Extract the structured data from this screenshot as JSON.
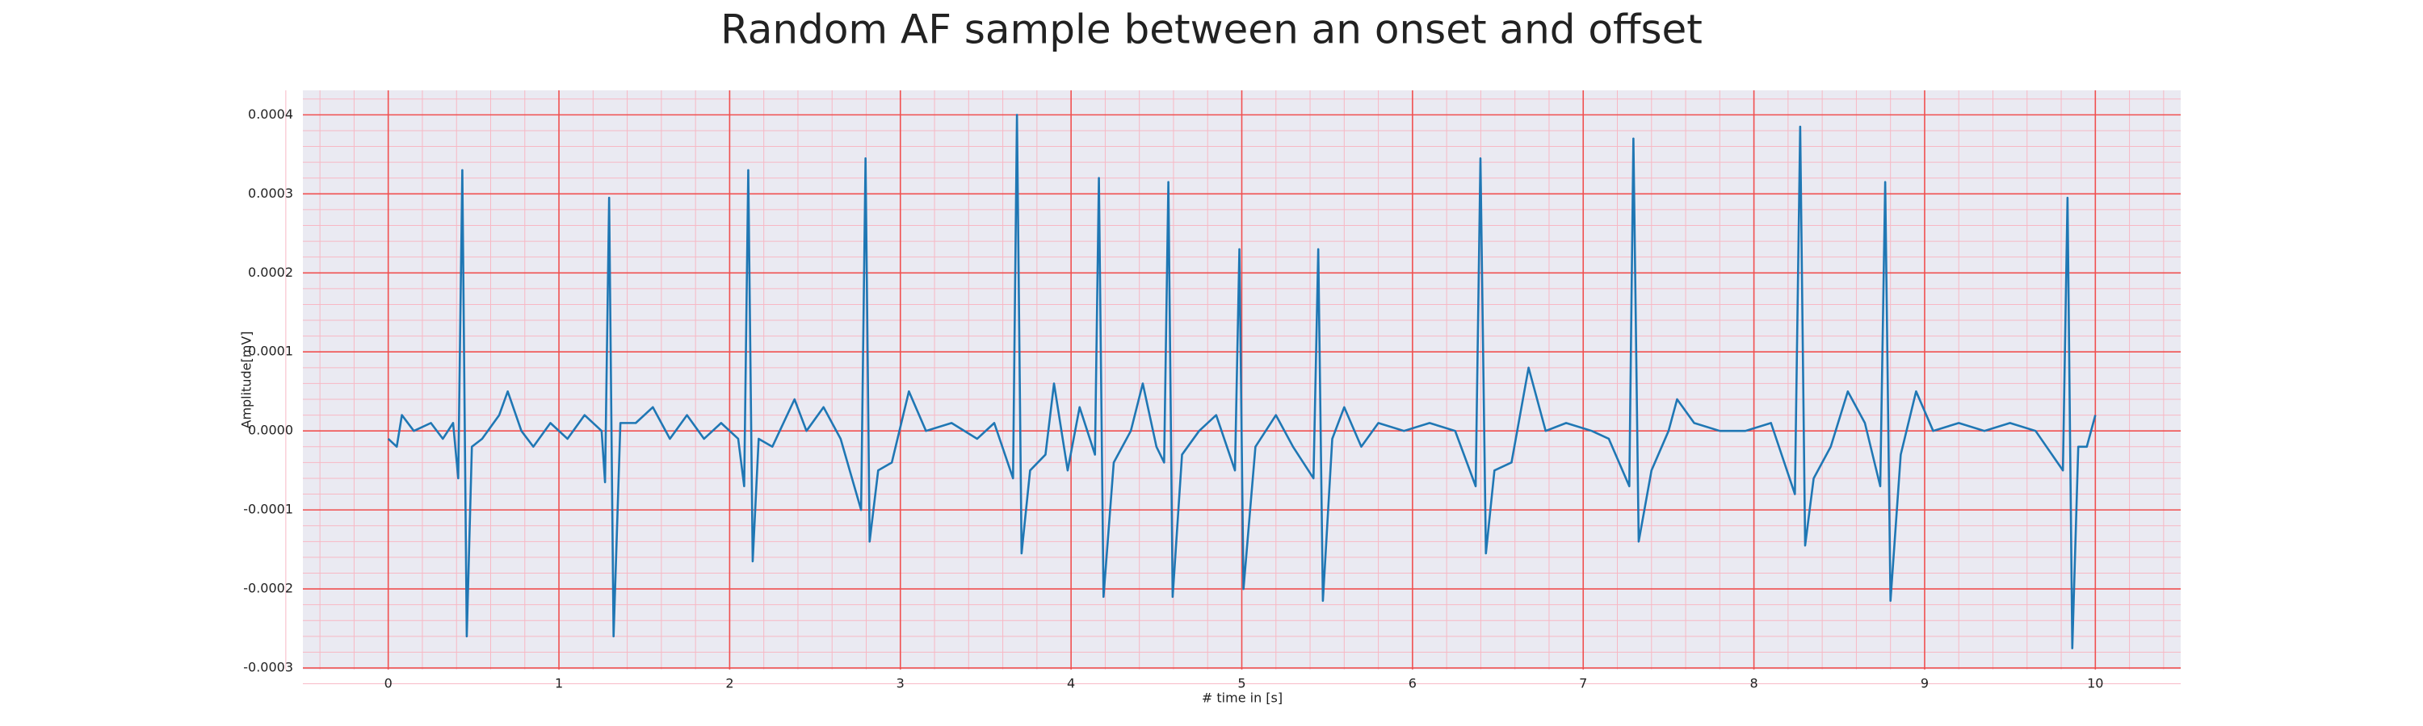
{
  "chart_data": {
    "type": "line",
    "title": "Random AF sample between an onset and offset",
    "xlabel": "# time in [s]",
    "ylabel": "Amplitude[mV]",
    "background": "#eaeaf2",
    "grid": true,
    "grid_color": "#f05050",
    "minor_grid": true,
    "minor_grid_color": "#f7b8c4",
    "xlim": [
      -0.5,
      10.5
    ],
    "xticks": [
      0,
      1,
      2,
      3,
      4,
      5,
      6,
      7,
      8,
      9,
      10
    ],
    "ylim": [
      -0.000302,
      0.000431
    ],
    "yticks": [
      {
        "value": -0.0003,
        "label": "-0.0003"
      },
      {
        "value": -0.0002,
        "label": "-0.0002"
      },
      {
        "value": -0.0001,
        "label": "-0.0001"
      },
      {
        "value": 0,
        "label": "0.0000"
      },
      {
        "value": 0.0001,
        "label": "0.0001"
      },
      {
        "value": 0.0002,
        "label": "0.0002"
      },
      {
        "value": 0.0003,
        "label": "0.0003"
      },
      {
        "value": 0.0004,
        "label": "0.0004"
      }
    ],
    "series": [
      {
        "color": "#1f77b4",
        "x": [
          0,
          0.05,
          0.08,
          0.15,
          0.25,
          0.32,
          0.38,
          0.41,
          0.434,
          0.46,
          0.49,
          0.55,
          0.65,
          0.7,
          0.78,
          0.85,
          0.95,
          1.05,
          1.15,
          1.25,
          1.27,
          1.294,
          1.32,
          1.36,
          1.45,
          1.55,
          1.65,
          1.75,
          1.85,
          1.95,
          2.05,
          2.085,
          2.109,
          2.135,
          2.17,
          2.25,
          2.38,
          2.45,
          2.55,
          2.65,
          2.77,
          2.796,
          2.82,
          2.87,
          2.95,
          3.05,
          3.15,
          3.3,
          3.45,
          3.55,
          3.66,
          3.683,
          3.71,
          3.76,
          3.85,
          3.9,
          3.98,
          4.05,
          4.14,
          4.163,
          4.19,
          4.25,
          4.35,
          4.42,
          4.5,
          4.545,
          4.57,
          4.595,
          4.65,
          4.75,
          4.85,
          4.96,
          4.986,
          5.01,
          5.08,
          5.2,
          5.3,
          5.42,
          5.448,
          5.475,
          5.53,
          5.6,
          5.7,
          5.8,
          5.95,
          6.1,
          6.25,
          6.37,
          6.398,
          6.43,
          6.48,
          6.58,
          6.68,
          6.78,
          6.9,
          7.05,
          7.15,
          7.27,
          7.294,
          7.325,
          7.4,
          7.5,
          7.55,
          7.65,
          7.8,
          7.95,
          8.1,
          8.24,
          8.271,
          8.3,
          8.35,
          8.45,
          8.55,
          8.65,
          8.74,
          8.769,
          8.8,
          8.86,
          8.95,
          9.05,
          9.2,
          9.35,
          9.5,
          9.65,
          9.81,
          9.837,
          9.865,
          9.9,
          9.95,
          10.0
        ],
        "values": [
          -1e-05,
          -2e-05,
          2e-05,
          0.0,
          1e-05,
          -1e-05,
          1e-05,
          -6e-05,
          0.00033,
          -0.00026,
          -2e-05,
          -1e-05,
          2e-05,
          5e-05,
          0.0,
          -2e-05,
          1e-05,
          -1e-05,
          2e-05,
          0.0,
          -6.5e-05,
          0.000295,
          -0.00026,
          1e-05,
          1e-05,
          3e-05,
          -1e-05,
          2e-05,
          -1e-05,
          1e-05,
          -1e-05,
          -7e-05,
          0.00033,
          -0.000165,
          -1e-05,
          -2e-05,
          4e-05,
          0.0,
          3e-05,
          -1e-05,
          -0.0001,
          0.000345,
          -0.00014,
          -5e-05,
          -4e-05,
          5e-05,
          0.0,
          1e-05,
          -1e-05,
          1e-05,
          -6e-05,
          0.0004,
          -0.000155,
          -5e-05,
          -3e-05,
          6e-05,
          -5e-05,
          3e-05,
          -3e-05,
          0.00032,
          -0.00021,
          -4e-05,
          0.0,
          6e-05,
          -2e-05,
          -4e-05,
          0.000315,
          -0.00021,
          -3e-05,
          0.0,
          2e-05,
          -5e-05,
          0.00023,
          -0.0002,
          -2e-05,
          2e-05,
          -2e-05,
          -6e-05,
          0.00023,
          -0.000215,
          -1e-05,
          3e-05,
          -2e-05,
          1e-05,
          0.0,
          1e-05,
          0.0,
          -7e-05,
          0.000345,
          -0.000155,
          -5e-05,
          -4e-05,
          8e-05,
          0.0,
          1e-05,
          0.0,
          -1e-05,
          -7e-05,
          0.00037,
          -0.00014,
          -5e-05,
          0.0,
          4e-05,
          1e-05,
          0.0,
          0.0,
          1e-05,
          -8e-05,
          0.000385,
          -0.000145,
          -6e-05,
          -2e-05,
          5e-05,
          1e-05,
          -7e-05,
          0.000315,
          -0.000215,
          -3e-05,
          5e-05,
          0.0,
          1e-05,
          0.0,
          1e-05,
          0.0,
          -5e-05,
          0.000295,
          -0.000275,
          -2e-05,
          -2e-05,
          2e-05
        ]
      }
    ]
  }
}
